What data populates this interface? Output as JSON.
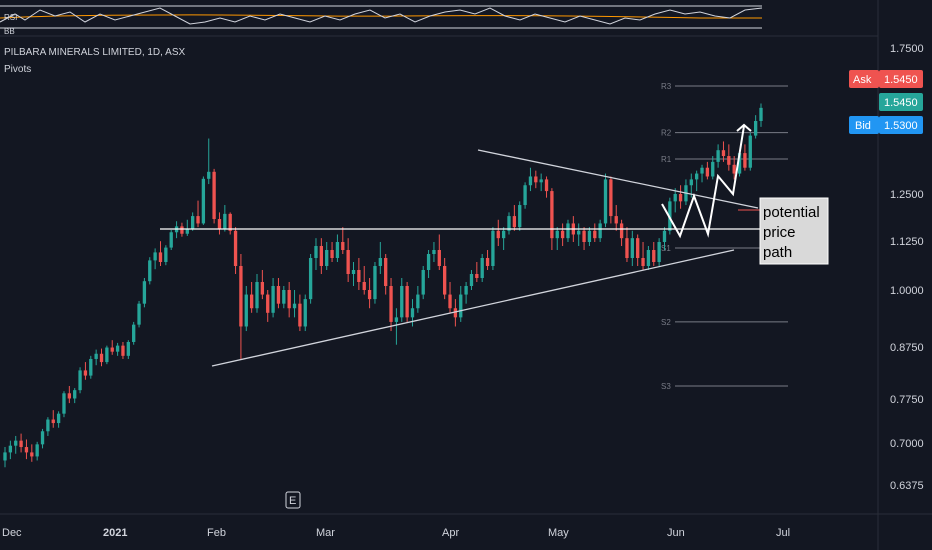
{
  "chart_data": {
    "type": "candlestick",
    "title": "PILBARA MINERALS LIMITED, 1D, ASX",
    "indicator_label": "Pivots",
    "rsi_label": "RSI",
    "rsi_sub_label": "BB",
    "y_ticks": [
      "1.7500",
      "1.2500",
      "1.1250",
      "1.0000",
      "0.8750",
      "0.7750",
      "0.7000",
      "0.6375"
    ],
    "x_ticks": [
      {
        "label": "Dec",
        "bold": false
      },
      {
        "label": "2021",
        "bold": true
      },
      {
        "label": "Feb",
        "bold": false
      },
      {
        "label": "Mar",
        "bold": false
      },
      {
        "label": "Apr",
        "bold": false
      },
      {
        "label": "May",
        "bold": false
      },
      {
        "label": "Jun",
        "bold": false
      },
      {
        "label": "Jul",
        "bold": false
      }
    ],
    "pivots": [
      {
        "label": "R3",
        "value": 1.62
      },
      {
        "label": "R2",
        "value": 1.46
      },
      {
        "label": "R1",
        "value": 1.37
      },
      {
        "label": "S1",
        "value": 1.105
      },
      {
        "label": "S2",
        "value": 0.93
      },
      {
        "label": "S3",
        "value": 0.8
      }
    ],
    "price_tags": [
      {
        "label": "Ask",
        "value": "1.5450",
        "color": "#ef5350"
      },
      {
        "label": "",
        "value": "1.5450",
        "color": "#26a69a"
      },
      {
        "label": "Bid",
        "value": "1.5300",
        "color": "#2196f3"
      }
    ],
    "annotation": [
      "potential",
      "price",
      "path"
    ],
    "event_marker": "E",
    "colors": {
      "up": "#26a69a",
      "down": "#ef5350",
      "background": "#131722",
      "line": "#d1d4dc",
      "rsi_ma": "#ff9800"
    },
    "candles": [
      [
        0.674,
        0.694,
        0.664,
        0.686
      ],
      [
        0.686,
        0.704,
        0.676,
        0.696
      ],
      [
        0.696,
        0.712,
        0.684,
        0.704
      ],
      [
        0.704,
        0.716,
        0.686,
        0.694
      ],
      [
        0.694,
        0.706,
        0.676,
        0.686
      ],
      [
        0.686,
        0.698,
        0.672,
        0.68
      ],
      [
        0.68,
        0.702,
        0.674,
        0.698
      ],
      [
        0.698,
        0.724,
        0.692,
        0.72
      ],
      [
        0.72,
        0.744,
        0.712,
        0.74
      ],
      [
        0.74,
        0.756,
        0.726,
        0.734
      ],
      [
        0.734,
        0.754,
        0.726,
        0.75
      ],
      [
        0.75,
        0.79,
        0.744,
        0.786
      ],
      [
        0.786,
        0.8,
        0.768,
        0.776
      ],
      [
        0.776,
        0.796,
        0.768,
        0.792
      ],
      [
        0.792,
        0.836,
        0.786,
        0.83
      ],
      [
        0.83,
        0.846,
        0.812,
        0.82
      ],
      [
        0.82,
        0.858,
        0.814,
        0.852
      ],
      [
        0.852,
        0.87,
        0.84,
        0.862
      ],
      [
        0.862,
        0.872,
        0.838,
        0.846
      ],
      [
        0.846,
        0.878,
        0.842,
        0.874
      ],
      [
        0.874,
        0.89,
        0.86,
        0.866
      ],
      [
        0.866,
        0.884,
        0.858,
        0.878
      ],
      [
        0.878,
        0.886,
        0.852,
        0.858
      ],
      [
        0.858,
        0.89,
        0.852,
        0.886
      ],
      [
        0.886,
        0.93,
        0.88,
        0.924
      ],
      [
        0.924,
        0.976,
        0.918,
        0.97
      ],
      [
        0.97,
        1.03,
        0.962,
        1.022
      ],
      [
        1.022,
        1.082,
        1.014,
        1.074
      ],
      [
        1.074,
        1.104,
        1.052,
        1.094
      ],
      [
        1.094,
        1.122,
        1.06,
        1.07
      ],
      [
        1.07,
        1.112,
        1.062,
        1.106
      ],
      [
        1.106,
        1.152,
        1.1,
        1.146
      ],
      [
        1.146,
        1.176,
        1.13,
        1.162
      ],
      [
        1.162,
        1.172,
        1.134,
        1.142
      ],
      [
        1.142,
        1.18,
        1.136,
        1.156
      ],
      [
        1.156,
        1.2,
        1.15,
        1.19
      ],
      [
        1.19,
        1.232,
        1.16,
        1.17
      ],
      [
        1.17,
        1.31,
        1.166,
        1.302
      ],
      [
        1.302,
        1.44,
        1.284,
        1.326
      ],
      [
        1.326,
        1.336,
        1.17,
        1.182
      ],
      [
        1.182,
        1.2,
        1.14,
        1.154
      ],
      [
        1.154,
        1.22,
        1.148,
        1.196
      ],
      [
        1.196,
        1.2,
        1.14,
        1.15
      ],
      [
        1.15,
        1.16,
        1.04,
        1.06
      ],
      [
        1.06,
        1.09,
        0.85,
        0.92
      ],
      [
        0.92,
        1.01,
        0.91,
        0.99
      ],
      [
        0.99,
        1.02,
        0.95,
        0.96
      ],
      [
        0.96,
        1.04,
        0.95,
        1.02
      ],
      [
        1.02,
        1.05,
        0.98,
        0.99
      ],
      [
        0.99,
        1.0,
        0.93,
        0.95
      ],
      [
        0.95,
        1.03,
        0.94,
        1.01
      ],
      [
        1.01,
        1.03,
        0.96,
        0.97
      ],
      [
        0.97,
        1.01,
        0.96,
        1.0
      ],
      [
        1.0,
        1.02,
        0.94,
        0.96
      ],
      [
        0.96,
        1.0,
        0.94,
        0.97
      ],
      [
        0.97,
        0.99,
        0.91,
        0.92
      ],
      [
        0.92,
        0.99,
        0.91,
        0.98
      ],
      [
        0.98,
        1.09,
        0.97,
        1.08
      ],
      [
        1.08,
        1.13,
        1.05,
        1.11
      ],
      [
        1.11,
        1.13,
        1.04,
        1.06
      ],
      [
        1.06,
        1.12,
        1.05,
        1.1
      ],
      [
        1.1,
        1.12,
        1.07,
        1.08
      ],
      [
        1.08,
        1.14,
        1.07,
        1.12
      ],
      [
        1.12,
        1.16,
        1.09,
        1.1
      ],
      [
        1.1,
        1.13,
        1.02,
        1.04
      ],
      [
        1.04,
        1.07,
        1.01,
        1.05
      ],
      [
        1.05,
        1.08,
        1.0,
        1.02
      ],
      [
        1.02,
        1.06,
        0.99,
        1.0
      ],
      [
        1.0,
        1.03,
        0.96,
        0.98
      ],
      [
        0.98,
        1.07,
        0.97,
        1.06
      ],
      [
        1.06,
        1.12,
        1.04,
        1.08
      ],
      [
        1.08,
        1.09,
        0.99,
        1.01
      ],
      [
        1.01,
        1.03,
        0.91,
        0.93
      ],
      [
        0.93,
        0.96,
        0.88,
        0.94
      ],
      [
        0.94,
        1.03,
        0.93,
        1.01
      ],
      [
        1.01,
        1.02,
        0.93,
        0.94
      ],
      [
        0.94,
        0.98,
        0.92,
        0.96
      ],
      [
        0.96,
        1.01,
        0.95,
        0.99
      ],
      [
        0.99,
        1.06,
        0.98,
        1.05
      ],
      [
        1.05,
        1.1,
        1.03,
        1.09
      ],
      [
        1.09,
        1.12,
        1.07,
        1.1
      ],
      [
        1.1,
        1.14,
        1.05,
        1.06
      ],
      [
        1.06,
        1.08,
        0.98,
        0.99
      ],
      [
        0.99,
        1.02,
        0.95,
        0.96
      ],
      [
        0.96,
        0.98,
        0.92,
        0.94
      ],
      [
        0.94,
        1.01,
        0.93,
        0.99
      ],
      [
        0.99,
        1.02,
        0.97,
        1.01
      ],
      [
        1.01,
        1.05,
        1.0,
        1.04
      ],
      [
        1.04,
        1.07,
        1.02,
        1.03
      ],
      [
        1.03,
        1.09,
        1.02,
        1.08
      ],
      [
        1.08,
        1.1,
        1.05,
        1.06
      ],
      [
        1.06,
        1.16,
        1.05,
        1.15
      ],
      [
        1.15,
        1.18,
        1.11,
        1.13
      ],
      [
        1.13,
        1.16,
        1.1,
        1.15
      ],
      [
        1.15,
        1.2,
        1.14,
        1.19
      ],
      [
        1.19,
        1.22,
        1.15,
        1.16
      ],
      [
        1.16,
        1.23,
        1.15,
        1.22
      ],
      [
        1.22,
        1.29,
        1.21,
        1.28
      ],
      [
        1.28,
        1.34,
        1.26,
        1.31
      ],
      [
        1.31,
        1.33,
        1.27,
        1.29
      ],
      [
        1.29,
        1.32,
        1.26,
        1.3
      ],
      [
        1.3,
        1.31,
        1.24,
        1.26
      ],
      [
        1.26,
        1.27,
        1.1,
        1.13
      ],
      [
        1.13,
        1.16,
        1.1,
        1.15
      ],
      [
        1.15,
        1.17,
        1.11,
        1.13
      ],
      [
        1.13,
        1.18,
        1.12,
        1.17
      ],
      [
        1.17,
        1.19,
        1.12,
        1.14
      ],
      [
        1.14,
        1.17,
        1.11,
        1.15
      ],
      [
        1.15,
        1.16,
        1.1,
        1.12
      ],
      [
        1.12,
        1.16,
        1.11,
        1.15
      ],
      [
        1.15,
        1.17,
        1.12,
        1.13
      ],
      [
        1.13,
        1.18,
        1.12,
        1.17
      ],
      [
        1.17,
        1.32,
        1.16,
        1.3
      ],
      [
        1.3,
        1.31,
        1.17,
        1.19
      ],
      [
        1.19,
        1.22,
        1.15,
        1.17
      ],
      [
        1.17,
        1.18,
        1.11,
        1.13
      ],
      [
        1.13,
        1.16,
        1.07,
        1.08
      ],
      [
        1.08,
        1.15,
        1.06,
        1.13
      ],
      [
        1.13,
        1.14,
        1.06,
        1.08
      ],
      [
        1.08,
        1.12,
        1.05,
        1.06
      ],
      [
        1.06,
        1.11,
        1.05,
        1.1
      ],
      [
        1.1,
        1.12,
        1.06,
        1.07
      ],
      [
        1.07,
        1.13,
        1.06,
        1.12
      ],
      [
        1.12,
        1.16,
        1.1,
        1.15
      ],
      [
        1.15,
        1.24,
        1.14,
        1.23
      ],
      [
        1.23,
        1.27,
        1.2,
        1.25
      ],
      [
        1.25,
        1.28,
        1.21,
        1.23
      ],
      [
        1.23,
        1.3,
        1.22,
        1.28
      ],
      [
        1.28,
        1.32,
        1.24,
        1.3
      ],
      [
        1.3,
        1.33,
        1.26,
        1.32
      ],
      [
        1.32,
        1.35,
        1.29,
        1.34
      ],
      [
        1.34,
        1.36,
        1.3,
        1.31
      ],
      [
        1.31,
        1.38,
        1.3,
        1.36
      ],
      [
        1.36,
        1.42,
        1.34,
        1.4
      ],
      [
        1.4,
        1.43,
        1.36,
        1.38
      ],
      [
        1.38,
        1.42,
        1.33,
        1.35
      ],
      [
        1.35,
        1.38,
        1.3,
        1.32
      ],
      [
        1.32,
        1.4,
        1.31,
        1.39
      ],
      [
        1.39,
        1.42,
        1.33,
        1.34
      ],
      [
        1.34,
        1.46,
        1.33,
        1.45
      ],
      [
        1.45,
        1.52,
        1.44,
        1.5
      ],
      [
        1.5,
        1.56,
        1.48,
        1.545
      ]
    ]
  }
}
